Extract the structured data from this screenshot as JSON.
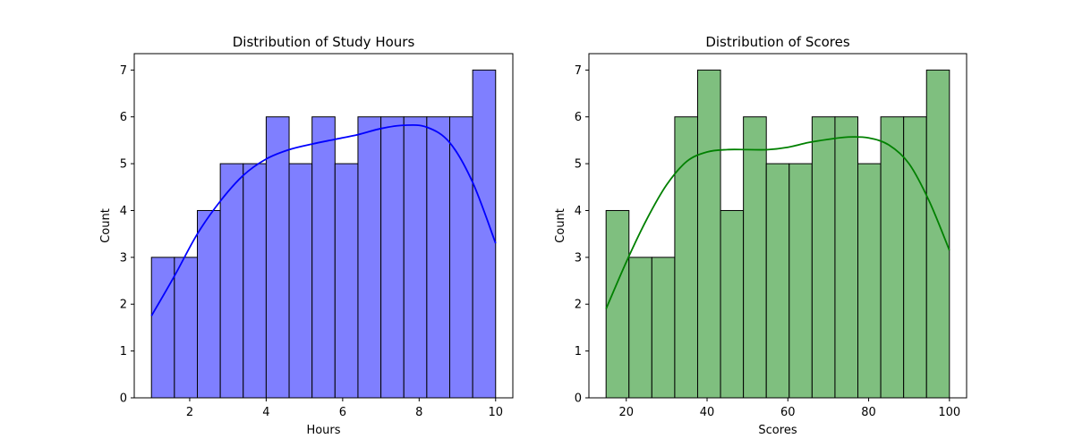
{
  "chart_data": [
    {
      "type": "bar",
      "title": "Distribution of Study Hours",
      "xlabel": "Hours",
      "ylabel": "Count",
      "xlim": [
        0.55,
        10.45
      ],
      "ylim": [
        0,
        7.35
      ],
      "xticks": [
        2,
        4,
        6,
        8,
        10
      ],
      "yticks": [
        0,
        1,
        2,
        3,
        4,
        5,
        6,
        7
      ],
      "bin_start": 1.0,
      "bin_end": 10.0,
      "counts": [
        3,
        3,
        4,
        5,
        5,
        6,
        5,
        6,
        5,
        6,
        6,
        6,
        6,
        6,
        7
      ],
      "bar_color": "#7f7fff",
      "edge_color": "#000000",
      "kde": {
        "color": "#0000ff",
        "x": [
          1.0,
          1.6,
          2.2,
          2.8,
          3.4,
          4.0,
          4.6,
          5.2,
          5.8,
          6.4,
          7.0,
          7.6,
          8.2,
          8.8,
          9.4,
          10.0
        ],
        "y": [
          1.75,
          2.6,
          3.5,
          4.2,
          4.75,
          5.1,
          5.3,
          5.42,
          5.52,
          5.62,
          5.75,
          5.82,
          5.78,
          5.45,
          4.6,
          3.3
        ]
      }
    },
    {
      "type": "bar",
      "title": "Distribution of Scores",
      "xlabel": "Scores",
      "ylabel": "Count",
      "xlim": [
        10.75,
        104.25
      ],
      "ylim": [
        0,
        7.35
      ],
      "xticks": [
        20,
        40,
        60,
        80,
        100
      ],
      "yticks": [
        0,
        1,
        2,
        3,
        4,
        5,
        6,
        7
      ],
      "bin_start": 15.0,
      "bin_end": 100.0,
      "counts": [
        4,
        3,
        3,
        6,
        7,
        4,
        6,
        5,
        5,
        6,
        6,
        5,
        6,
        6,
        7
      ],
      "bar_color": "#7fbf7f",
      "edge_color": "#000000",
      "kde": {
        "color": "#008000",
        "x": [
          15,
          20,
          25,
          30,
          35,
          40,
          45,
          50,
          55,
          60,
          65,
          70,
          75,
          80,
          85,
          90,
          95,
          100
        ],
        "y": [
          1.9,
          2.9,
          3.8,
          4.55,
          5.05,
          5.25,
          5.3,
          5.3,
          5.3,
          5.35,
          5.45,
          5.52,
          5.57,
          5.55,
          5.4,
          5.0,
          4.2,
          3.15
        ]
      }
    }
  ]
}
